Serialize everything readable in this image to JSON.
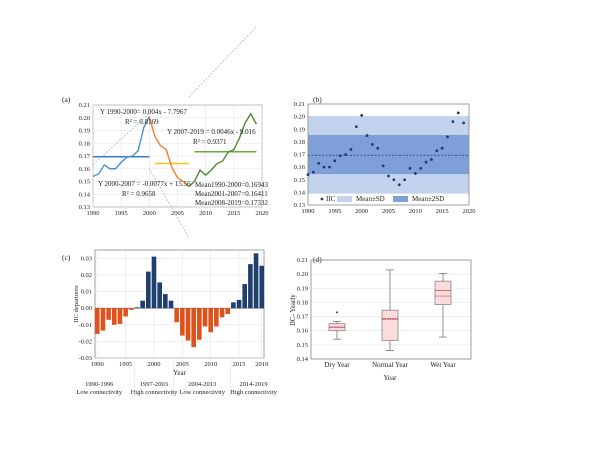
{
  "chart_data": [
    {
      "panel": "(a)",
      "type": "line",
      "xlim": [
        1990,
        2020
      ],
      "ylim": [
        0.13,
        0.21
      ],
      "xticks": [
        1990,
        1995,
        2000,
        2005,
        2010,
        2015,
        2020
      ],
      "yticks": [
        0.13,
        0.14,
        0.15,
        0.16,
        0.17,
        0.18,
        0.19,
        0.2,
        0.21
      ],
      "x": [
        1990,
        1991,
        1992,
        1993,
        1994,
        1995,
        1996,
        1997,
        1998,
        1999,
        2000,
        2001,
        2002,
        2003,
        2004,
        2005,
        2006,
        2007,
        2008,
        2009,
        2010,
        2011,
        2012,
        2013,
        2014,
        2015,
        2016,
        2017,
        2018,
        2019
      ],
      "y": [
        0.154,
        0.156,
        0.163,
        0.16,
        0.16,
        0.165,
        0.169,
        0.17,
        0.174,
        0.192,
        0.201,
        0.185,
        0.178,
        0.175,
        0.161,
        0.153,
        0.15,
        0.146,
        0.15,
        0.159,
        0.155,
        0.159,
        0.164,
        0.166,
        0.173,
        0.175,
        0.184,
        0.196,
        0.203,
        0.195
      ],
      "segments": [
        {
          "from": 1990,
          "to": 2000,
          "color": "#4a8fd6"
        },
        {
          "from": 2000,
          "to": 2007,
          "color": "#f07f2a"
        },
        {
          "from": 2007,
          "to": 2019,
          "color": "#4f8a2e"
        }
      ],
      "means": [
        {
          "from": 1990,
          "to": 2000,
          "value": 0.16943,
          "color": "#3b78cf"
        },
        {
          "from": 2001,
          "to": 2007,
          "value": 0.16411,
          "color": "#f3c21b"
        },
        {
          "from": 2008,
          "to": 2019,
          "value": 0.17332,
          "color": "#6aaa3a"
        }
      ],
      "trends": [
        {
          "from": 1990,
          "to": 2000,
          "slope": 0.004,
          "intercept": -7.7967
        },
        {
          "from": 2000,
          "to": 2007,
          "slope": -0.0077,
          "intercept": 15.56
        },
        {
          "from": 2007,
          "to": 2019,
          "slope": 0.0046,
          "intercept": -9.016
        }
      ],
      "annotations": {
        "eq1": "Y 1990-2000= 0.004x - 7.7967",
        "r1": "R² = 0.8169",
        "eq2": "Y 2007-2019 = 0.0046x - 9.016",
        "r2": "R² = 0.9371",
        "eq3": "Y 2000-2007 = -0.0077x + 15.56",
        "r3": "R² = 0.9658",
        "m1": "Mean1990-2000=0.16943",
        "m2": "Mean2001-2007=0.16411",
        "m3": "Mean2008-2019=0.17332"
      }
    },
    {
      "panel": "(b)",
      "type": "scatter",
      "xlim": [
        1990,
        2020
      ],
      "ylim": [
        0.13,
        0.21
      ],
      "xticks": [
        1990,
        1995,
        2000,
        2005,
        2010,
        2015,
        2020
      ],
      "yticks": [
        0.13,
        0.14,
        0.15,
        0.16,
        0.17,
        0.18,
        0.19,
        0.2,
        0.21
      ],
      "mean": 0.1694,
      "sd_band": [
        0.1545,
        0.1855
      ],
      "sd2_band": [
        0.139,
        0.2005
      ],
      "legend": {
        "points": "IIC",
        "band1": "Mean±SD",
        "band2": "Mean±2SD"
      },
      "legend_placement": "bottom"
    },
    {
      "panel": "(c)",
      "type": "bar",
      "ylabel": "IIC departures",
      "xlabel": "Year",
      "ylim": [
        -0.03,
        0.035
      ],
      "yticks": [
        -0.03,
        -0.02,
        -0.01,
        0.0,
        0.01,
        0.02,
        0.03
      ],
      "xticks": [
        1990,
        1995,
        2000,
        2005,
        2010,
        2015,
        2019
      ],
      "x": [
        1990,
        1991,
        1992,
        1993,
        1994,
        1995,
        1996,
        1997,
        1998,
        1999,
        2000,
        2001,
        2002,
        2003,
        2004,
        2005,
        2006,
        2007,
        2008,
        2009,
        2010,
        2011,
        2012,
        2013,
        2014,
        2015,
        2016,
        2017,
        2018,
        2019
      ],
      "values": [
        -0.0155,
        -0.0135,
        -0.007,
        -0.01,
        -0.0095,
        -0.005,
        -0.001,
        0.0005,
        0.0045,
        0.022,
        0.031,
        0.0155,
        0.0085,
        0.0045,
        -0.0085,
        -0.0165,
        -0.0195,
        -0.0235,
        -0.019,
        -0.011,
        -0.0145,
        -0.011,
        -0.0055,
        -0.0035,
        0.0035,
        0.005,
        0.0145,
        0.0265,
        0.033,
        0.0255
      ],
      "colors": {
        "positive": "#203f6e",
        "negative": "#e0521c"
      },
      "periods": [
        {
          "years": "1990-1996",
          "label": "Low connectivity"
        },
        {
          "years": "1997-2003",
          "label": "High connectivity"
        },
        {
          "years": "2004-2013",
          "label": "Low connectivity"
        },
        {
          "years": "2014-2019",
          "label": "High connectivity"
        }
      ]
    },
    {
      "panel": "(d)",
      "type": "box",
      "ylabel": "IIC- Yearly",
      "xlabel": "Year",
      "ylim": [
        0.14,
        0.21
      ],
      "yticks": [
        0.14,
        0.15,
        0.16,
        0.17,
        0.18,
        0.19,
        0.2,
        0.21
      ],
      "categories": [
        "Dry Year",
        "Normal Year",
        "Wet Year"
      ],
      "boxes": [
        {
          "min": 0.154,
          "q1": 0.16,
          "median": 0.1625,
          "mean": 0.1625,
          "q3": 0.165,
          "max": 0.1665,
          "outliers": [
            0.173
          ]
        },
        {
          "min": 0.146,
          "q1": 0.153,
          "median": 0.1685,
          "mean": 0.168,
          "q3": 0.1745,
          "max": 0.203,
          "outliers": []
        },
        {
          "min": 0.1555,
          "q1": 0.1785,
          "median": 0.1885,
          "mean": 0.1845,
          "q3": 0.195,
          "max": 0.2005,
          "outliers": []
        }
      ]
    }
  ]
}
